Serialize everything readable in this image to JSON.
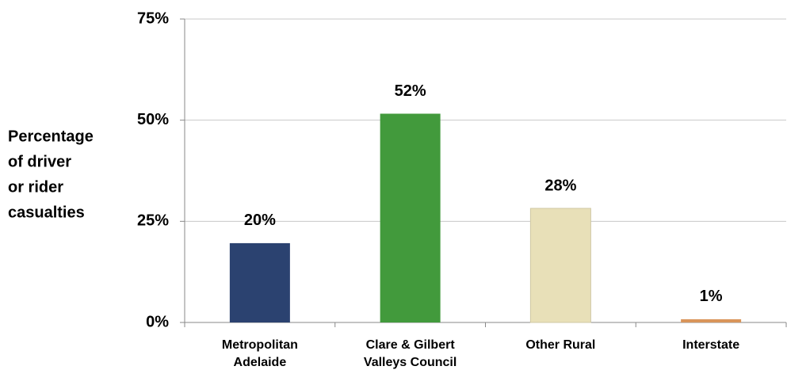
{
  "chart_data": {
    "type": "bar",
    "y_label": [
      "Percentage",
      "of driver",
      "or rider",
      "casualties"
    ],
    "categories": [
      [
        "Metropolitan",
        "Adelaide"
      ],
      [
        "Clare & Gilbert",
        "Valleys Council"
      ],
      [
        "Other Rural"
      ],
      [
        "Interstate"
      ]
    ],
    "values": [
      19.6,
      51.6,
      28.2,
      0.8
    ],
    "value_labels": [
      "20%",
      "52%",
      "28%",
      "1%"
    ],
    "colors": [
      "#2b4270",
      "#429a3c",
      "#e8e0b8",
      "#d9955a"
    ],
    "ylim": [
      0,
      75
    ],
    "yticks": [
      {
        "value": 0,
        "label": "0%"
      },
      {
        "value": 25,
        "label": "25%"
      },
      {
        "value": 50,
        "label": "50%"
      },
      {
        "value": 75,
        "label": "75%"
      }
    ],
    "grid": true
  }
}
